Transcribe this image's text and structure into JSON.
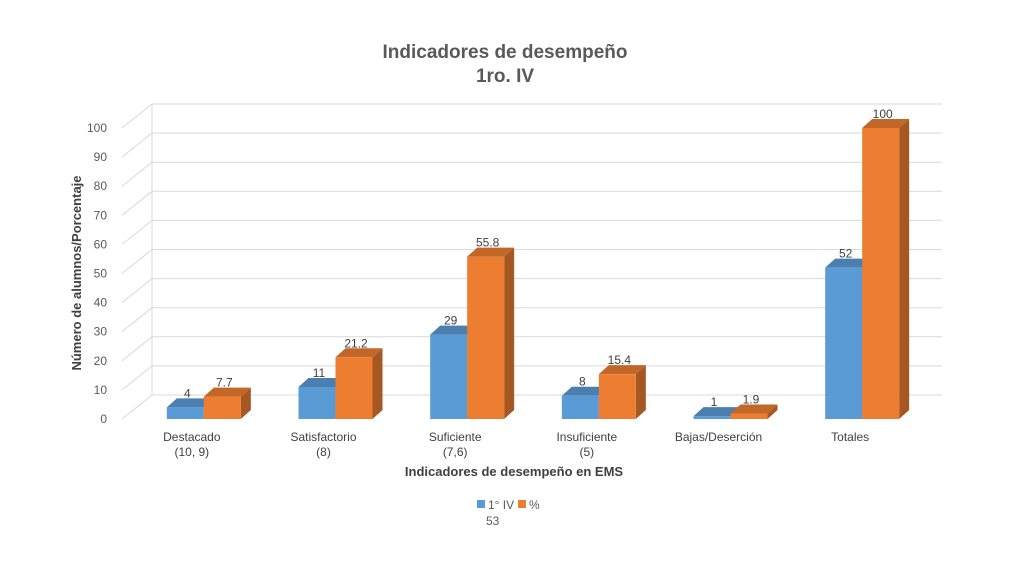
{
  "colors": {
    "series1": "#5B9BD5",
    "series2": "#ED7D31",
    "grid": "#D9D9D9"
  },
  "chart_data": {
    "type": "bar",
    "title_line1": "Indicadores de desempeño",
    "title_line2": "1ro. IV",
    "xlabel": "Indicadores de desempeño en EMS",
    "ylabel": "Número de alumnos/Porcentaje",
    "ylim": [
      0,
      100
    ],
    "yticks": [
      0,
      10,
      20,
      30,
      40,
      50,
      60,
      70,
      80,
      90,
      100
    ],
    "grid": true,
    "legend_position": "bottom",
    "categories": [
      {
        "line1": "Destacado",
        "line2": "(10, 9)"
      },
      {
        "line1": "Satisfactorio",
        "line2": "(8)"
      },
      {
        "line1": "Suficiente",
        "line2": "(7,6)"
      },
      {
        "line1": "Insuficiente",
        "line2": "(5)"
      },
      {
        "line1": "Bajas/Deserción",
        "line2": ""
      },
      {
        "line1": "Totales",
        "line2": ""
      }
    ],
    "series": [
      {
        "name": "1° IV",
        "values": [
          4,
          11,
          29,
          8,
          1,
          52
        ],
        "labels": [
          "4",
          "11",
          "29",
          "8",
          "1",
          "52"
        ]
      },
      {
        "name": "%",
        "values": [
          7.7,
          21.2,
          55.8,
          15.4,
          1.9,
          100
        ],
        "labels": [
          "7.7",
          "21.2",
          "55.8",
          "15.4",
          "1.9",
          "100"
        ]
      }
    ],
    "legend_extra": "53"
  }
}
